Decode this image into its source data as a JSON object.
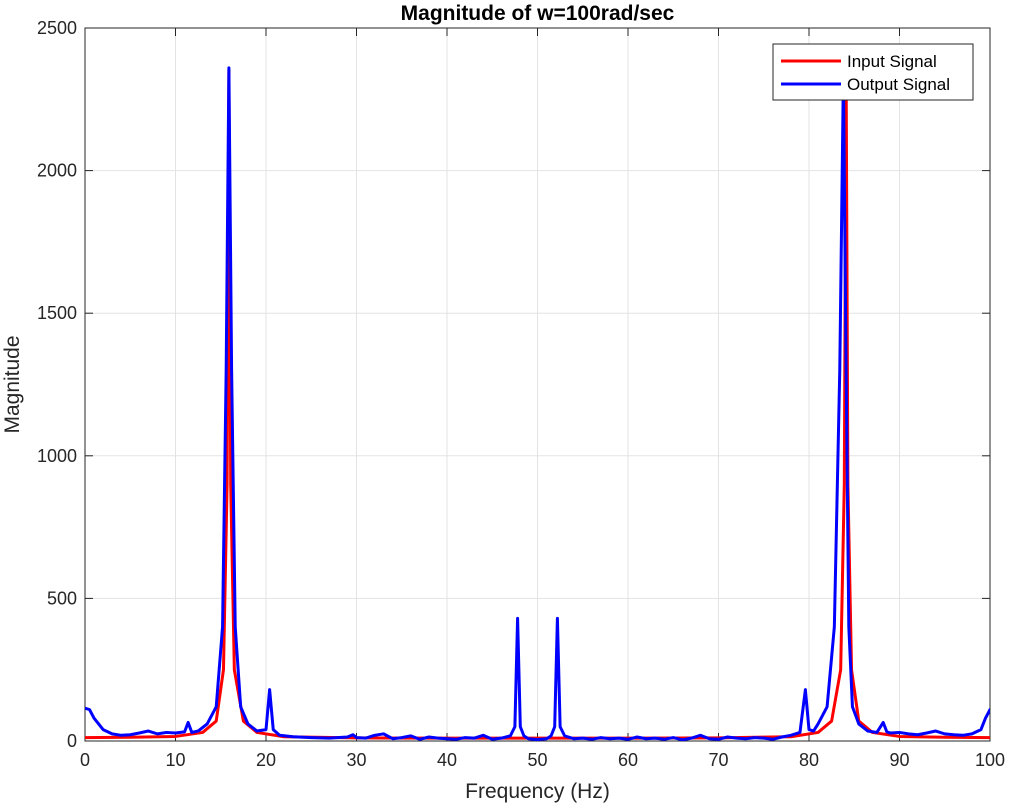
{
  "chart_data": {
    "type": "line",
    "title": "Magnitude of w=100rad/sec",
    "xlabel": "Frequency (Hz)",
    "ylabel": "Magnitude",
    "xlim": [
      0,
      100
    ],
    "ylim": [
      0,
      2500
    ],
    "xticks": [
      0,
      10,
      20,
      30,
      40,
      50,
      60,
      70,
      80,
      90,
      100
    ],
    "yticks": [
      0,
      500,
      1000,
      1500,
      2000,
      2500
    ],
    "grid": true,
    "legend_position": "top-right",
    "series": [
      {
        "name": "Input Signal",
        "color": "#ff0000",
        "x": [
          0,
          5,
          10,
          13,
          14.5,
          15.3,
          15.7,
          15.9,
          16.1,
          16.5,
          17.5,
          19,
          22,
          30,
          40,
          50,
          60,
          70,
          78,
          81,
          82.5,
          83.5,
          83.9,
          84.1,
          84.3,
          84.7,
          85.5,
          87,
          90,
          95,
          100
        ],
        "y": [
          12,
          13,
          16,
          30,
          70,
          250,
          900,
          2350,
          900,
          250,
          70,
          30,
          15,
          11,
          10,
          10,
          10,
          11,
          15,
          30,
          70,
          250,
          900,
          2350,
          900,
          250,
          70,
          30,
          16,
          13,
          12
        ]
      },
      {
        "name": "Output Signal",
        "color": "#0000ff",
        "x": [
          0,
          0.5,
          1,
          2,
          3,
          4,
          5,
          6,
          7,
          8,
          9,
          10,
          11,
          11.4,
          11.8,
          12.5,
          13.5,
          14.5,
          15.2,
          15.6,
          15.9,
          16.2,
          16.6,
          17.2,
          18,
          19,
          20,
          20.4,
          20.8,
          21.5,
          23,
          25,
          27,
          29,
          29.6,
          30,
          31,
          32,
          33,
          34,
          35,
          36,
          37,
          38,
          39,
          40,
          41,
          42,
          43,
          44,
          45,
          46,
          47,
          47.5,
          47.8,
          48.1,
          48.5,
          49,
          50,
          51,
          51.5,
          51.9,
          52.2,
          52.5,
          53,
          54,
          55,
          56,
          57,
          58,
          59,
          60,
          61,
          62,
          63,
          64,
          65,
          66,
          67,
          68,
          69,
          70,
          71,
          72,
          73,
          74,
          75,
          76,
          77,
          78,
          79,
          79.6,
          80,
          80.5,
          81,
          82,
          82.8,
          83.4,
          83.8,
          84.1,
          84.4,
          84.8,
          85.5,
          86.5,
          87.5,
          88.2,
          88.6,
          89,
          90,
          91,
          92,
          93,
          94,
          95,
          96,
          97,
          98,
          99,
          99.5,
          100
        ],
        "y": [
          115,
          110,
          80,
          40,
          25,
          20,
          22,
          28,
          35,
          25,
          30,
          28,
          32,
          65,
          30,
          35,
          60,
          120,
          400,
          1300,
          2360,
          1300,
          400,
          120,
          60,
          35,
          40,
          180,
          40,
          20,
          15,
          12,
          10,
          14,
          22,
          12,
          10,
          20,
          25,
          8,
          12,
          18,
          6,
          14,
          10,
          8,
          6,
          12,
          10,
          20,
          6,
          10,
          18,
          50,
          430,
          50,
          18,
          8,
          5,
          8,
          18,
          50,
          430,
          50,
          18,
          8,
          10,
          6,
          12,
          8,
          10,
          6,
          14,
          8,
          10,
          6,
          12,
          4,
          10,
          20,
          8,
          6,
          14,
          10,
          8,
          12,
          10,
          6,
          14,
          20,
          30,
          180,
          40,
          35,
          60,
          120,
          400,
          1300,
          2330,
          1300,
          400,
          120,
          60,
          35,
          30,
          65,
          32,
          28,
          30,
          25,
          22,
          28,
          35,
          25,
          22,
          20,
          25,
          40,
          80,
          110
        ]
      }
    ]
  }
}
